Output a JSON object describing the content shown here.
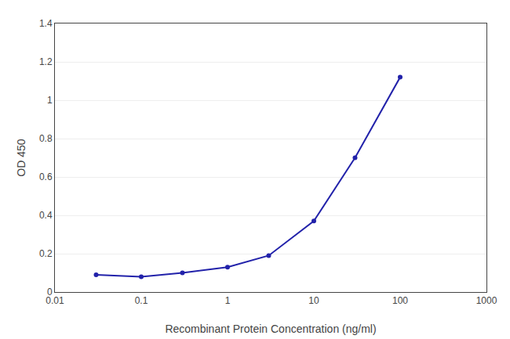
{
  "chart_data": {
    "type": "line",
    "xlabel": "Recombinant Protein Concentration (ng/ml)",
    "ylabel": "OD 450",
    "x": [
      0.03,
      0.1,
      0.3,
      1.0,
      3.0,
      10.0,
      30.0,
      100.0
    ],
    "values": [
      0.09,
      0.08,
      0.1,
      0.13,
      0.19,
      0.37,
      0.7,
      1.12
    ],
    "color": "#2222aa",
    "marker": "circle",
    "log": "x",
    "xlim": [
      0.01,
      1000
    ],
    "xticks": [
      0.01,
      0.1,
      1,
      10,
      100,
      1000
    ],
    "ylim": [
      0,
      1.4
    ],
    "yticks": [
      0,
      0.2,
      0.4,
      0.6,
      0.8,
      1,
      1.2,
      1.4
    ],
    "grid": "y"
  }
}
